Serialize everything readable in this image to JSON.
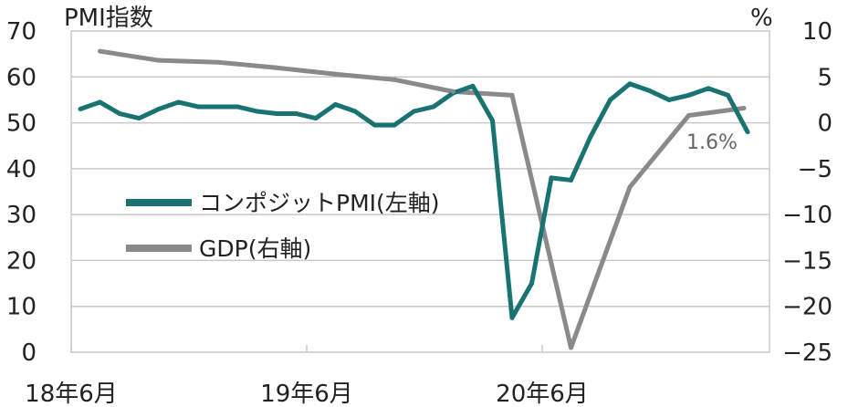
{
  "chart_data": {
    "type": "line",
    "y_left_label": "PMI指数",
    "y_right_label": "%",
    "y_left_ticks": [
      "0",
      "10",
      "20",
      "30",
      "40",
      "50",
      "60",
      "70"
    ],
    "y_right_ticks": [
      "10",
      "5",
      "0",
      "−5",
      "−10",
      "−15",
      "−20",
      "−25"
    ],
    "x_ticks": [
      "18年6月",
      "19年6月",
      "20年6月"
    ],
    "ylim_left": [
      0,
      70
    ],
    "ylim_right": [
      -25,
      10
    ],
    "grid": "horizontal",
    "legend_position": "center-left",
    "colors": {
      "pmi": "#187372",
      "gdp": "#8a8a8a"
    },
    "series": [
      {
        "name": "コンポジットPMI(左軸)",
        "axis": "left",
        "x": [
          "2018-06",
          "2018-07",
          "2018-08",
          "2018-09",
          "2018-10",
          "2018-11",
          "2018-12",
          "2019-01",
          "2019-02",
          "2019-03",
          "2019-04",
          "2019-05",
          "2019-06",
          "2019-07",
          "2019-08",
          "2019-09",
          "2019-10",
          "2019-11",
          "2019-12",
          "2020-01",
          "2020-02",
          "2020-03",
          "2020-04",
          "2020-05",
          "2020-06",
          "2020-07",
          "2020-08",
          "2020-09",
          "2020-10",
          "2020-11",
          "2020-12",
          "2021-01",
          "2021-02",
          "2021-03",
          "2021-04"
        ],
        "values": [
          53,
          54.5,
          52,
          51,
          53,
          54.5,
          53.5,
          53.5,
          53.5,
          52.5,
          52,
          52,
          51,
          54,
          52.5,
          49.5,
          49.5,
          52.5,
          53.5,
          56.5,
          58,
          50.5,
          7.5,
          15,
          38,
          37.5,
          47,
          55,
          58.5,
          57,
          55,
          56,
          57.5,
          56,
          48
        ]
      },
      {
        "name": "GDP(右軸)",
        "axis": "right",
        "x": [
          "2018-07",
          "2018-10",
          "2019-01",
          "2019-04",
          "2019-07",
          "2019-10",
          "2020-01",
          "2020-04",
          "2020-07",
          "2020-10",
          "2021-01"
        ],
        "values": [
          7.8,
          6.8,
          6.6,
          6.0,
          5.3,
          4.7,
          3.4,
          3.0,
          -24.5,
          -7.0,
          0.8
        ],
        "end_value": 1.6,
        "end_x": "2021-04"
      }
    ],
    "annotation": "1.6%"
  }
}
